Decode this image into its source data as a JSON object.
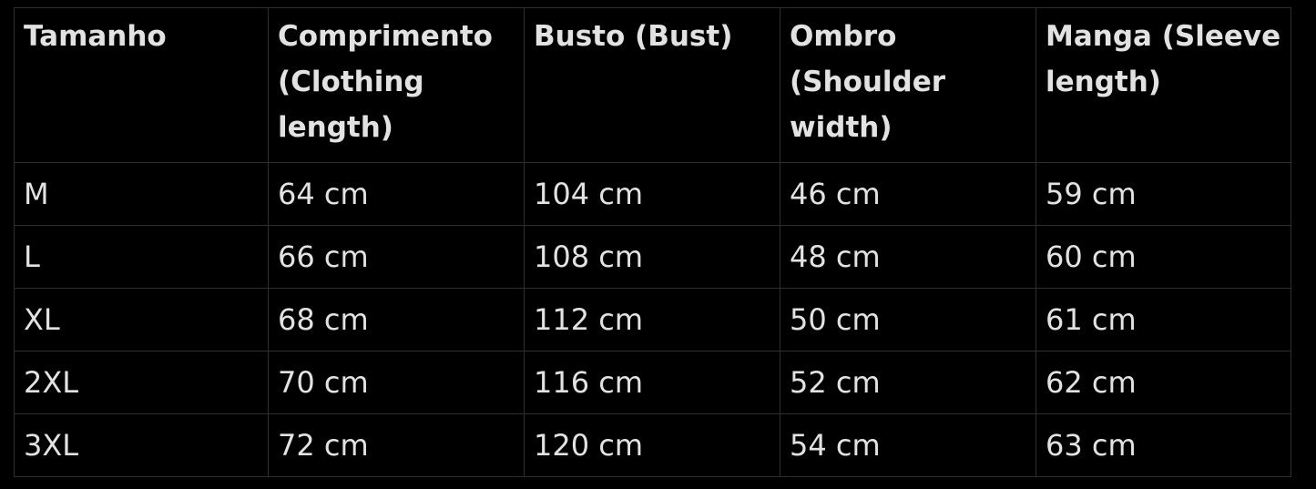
{
  "table": {
    "headers": [
      "Tamanho",
      "Comprimento (Clothing length)",
      "Busto (Bust)",
      "Ombro (Shoulder width)",
      "Manga (Sleeve length)"
    ],
    "rows": [
      [
        "M",
        "64 cm",
        "104 cm",
        "46 cm",
        "59 cm"
      ],
      [
        "L",
        "66 cm",
        "108 cm",
        "48 cm",
        "60 cm"
      ],
      [
        "XL",
        "68 cm",
        "112 cm",
        "50 cm",
        "61 cm"
      ],
      [
        "2XL",
        "70 cm",
        "116 cm",
        "52 cm",
        "62 cm"
      ],
      [
        "3XL",
        "72 cm",
        "120 cm",
        "54 cm",
        "63 cm"
      ]
    ]
  }
}
